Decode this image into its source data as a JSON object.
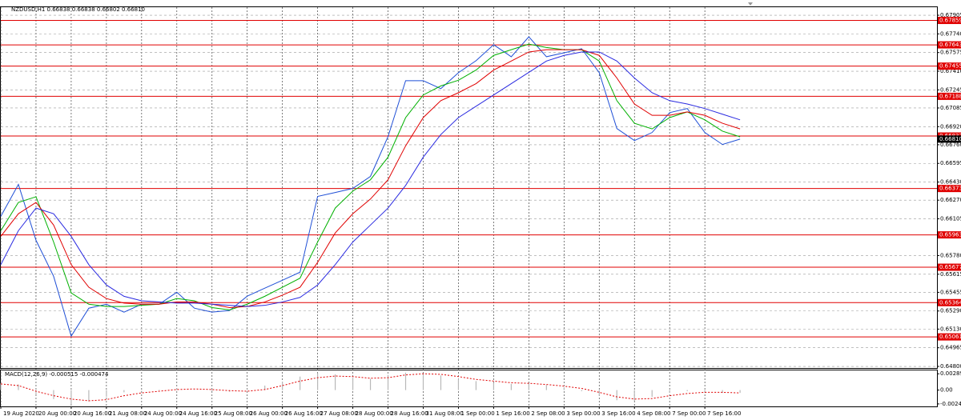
{
  "chart_data": [
    {
      "type": "line",
      "title": "NZDUSD,H1  0.66838 0.66838 0.66802 0.66810",
      "grid": true,
      "x": [
        0,
        8,
        16,
        24,
        32,
        40,
        48,
        56,
        64,
        72,
        80,
        88,
        96,
        104,
        112,
        120,
        128,
        136,
        144,
        152,
        160,
        168,
        176,
        184,
        192,
        200,
        208,
        216,
        224,
        232,
        240,
        248,
        256,
        264,
        272,
        280,
        288,
        296,
        304,
        312,
        320,
        328,
        336
      ],
      "xlim": [
        0,
        425.5
      ],
      "xticks": [
        {
          "value": 0,
          "label": "19 Aug 2020"
        },
        {
          "value": 16,
          "label": "20 Aug 00:00"
        },
        {
          "value": 32,
          "label": "20 Aug 16:00"
        },
        {
          "value": 48,
          "label": "21 Aug 08:00"
        },
        {
          "value": 64,
          "label": "24 Aug 00:00"
        },
        {
          "value": 80,
          "label": "24 Aug 16:00"
        },
        {
          "value": 96,
          "label": "25 Aug 08:00"
        },
        {
          "value": 112,
          "label": "26 Aug 00:00"
        },
        {
          "value": 128,
          "label": "26 Aug 16:00"
        },
        {
          "value": 144,
          "label": "27 Aug 08:00"
        },
        {
          "value": 160,
          "label": "28 Aug 00:00"
        },
        {
          "value": 176,
          "label": "28 Aug 16:00"
        },
        {
          "value": 192,
          "label": "31 Aug 08:00"
        },
        {
          "value": 208,
          "label": "1 Sep 00:00"
        },
        {
          "value": 224,
          "label": "1 Sep 16:00"
        },
        {
          "value": 240,
          "label": "2 Sep 08:00"
        },
        {
          "value": 256,
          "label": "3 Sep 00:00"
        },
        {
          "value": 272,
          "label": "3 Sep 16:00"
        },
        {
          "value": 288,
          "label": "4 Sep 08:00"
        },
        {
          "value": 304,
          "label": "7 Sep 00:00"
        },
        {
          "value": 320,
          "label": "7 Sep 16:00"
        }
      ],
      "ylim": [
        0.64786,
        0.67976
      ],
      "yticks": [
        0.67905,
        {
          "value": 0.6774,
          "label": "0.67740"
        },
        0.67575,
        {
          "value": 0.6741,
          "label": "0.67410"
        },
        0.67245,
        0.67085,
        {
          "value": 0.6692,
          "label": "0.66920"
        },
        {
          "value": 0.6676,
          "label": "0.66760"
        },
        0.66595,
        {
          "value": 0.6643,
          "label": "0.66430"
        },
        {
          "value": 0.6627,
          "label": "0.66270"
        },
        0.66105,
        {
          "value": 0.6578,
          "label": "0.65780"
        },
        0.65615,
        0.65455,
        {
          "value": 0.6529,
          "label": "0.65290"
        },
        {
          "value": 0.6513,
          "label": "0.65130"
        },
        0.64965,
        {
          "value": 0.648,
          "label": "0.64800"
        }
      ],
      "series": [
        {
          "color": "#1f4fd6",
          "values": [
            0.66127,
            0.66409,
            0.65915,
            0.65597,
            0.65068,
            0.65315,
            0.6535,
            0.6528,
            0.6535,
            0.6535,
            0.65456,
            0.65315,
            0.6528,
            0.65294,
            0.65421,
            0.65492,
            0.65562,
            0.65633,
            0.66303,
            0.66338,
            0.66374,
            0.6648,
            0.66832,
            0.67326,
            0.67326,
            0.67256,
            0.67397,
            0.67503,
            0.67644,
            0.67538,
            0.67714,
            0.67538,
            0.67573,
            0.67609,
            0.67397,
            0.66903,
            0.66797,
            0.66868,
            0.67044,
            0.6708,
            0.66868,
            0.66762,
            0.6681
          ]
        },
        {
          "color": "#00b000",
          "values": [
            0.66,
            0.6625,
            0.663,
            0.659,
            0.6545,
            0.6535,
            0.6533,
            0.6533,
            0.6534,
            0.6535,
            0.654,
            0.6538,
            0.6532,
            0.653,
            0.6535,
            0.6542,
            0.655,
            0.6558,
            0.659,
            0.662,
            0.6635,
            0.6645,
            0.6665,
            0.67,
            0.672,
            0.6728,
            0.6733,
            0.6742,
            0.6755,
            0.676,
            0.6765,
            0.6762,
            0.676,
            0.676,
            0.675,
            0.6715,
            0.6695,
            0.669,
            0.67,
            0.6705,
            0.6698,
            0.6688,
            0.6683
          ]
        },
        {
          "color": "#e00000",
          "values": [
            0.6595,
            0.6615,
            0.6625,
            0.6605,
            0.657,
            0.655,
            0.654,
            0.6536,
            0.6535,
            0.6535,
            0.6537,
            0.6537,
            0.6535,
            0.6532,
            0.6533,
            0.6537,
            0.6543,
            0.655,
            0.6572,
            0.6598,
            0.6615,
            0.6628,
            0.6645,
            0.6675,
            0.67,
            0.6715,
            0.6722,
            0.673,
            0.6742,
            0.675,
            0.6758,
            0.676,
            0.676,
            0.676,
            0.6755,
            0.6735,
            0.6712,
            0.6702,
            0.6702,
            0.6705,
            0.6702,
            0.6695,
            0.669
          ]
        },
        {
          "color": "#2a2ae0",
          "values": [
            0.657,
            0.66,
            0.662,
            0.6615,
            0.6595,
            0.657,
            0.6552,
            0.6542,
            0.6538,
            0.6537,
            0.6536,
            0.6536,
            0.6535,
            0.6534,
            0.6533,
            0.6534,
            0.6537,
            0.6541,
            0.6552,
            0.657,
            0.659,
            0.6605,
            0.662,
            0.664,
            0.6665,
            0.6685,
            0.67,
            0.671,
            0.672,
            0.673,
            0.674,
            0.675,
            0.6755,
            0.6758,
            0.6758,
            0.675,
            0.6735,
            0.6722,
            0.6715,
            0.6712,
            0.6708,
            0.6703,
            0.6698
          ]
        }
      ],
      "level_color": "#e00000",
      "levels": [
        0.67859,
        0.67643,
        0.67455,
        0.67188,
        0.66837,
        0.66373,
        0.65963,
        0.65677,
        0.65364,
        0.65061
      ],
      "current_price": {
        "value": 0.6681,
        "label": "0.66810"
      }
    },
    {
      "type": "macd",
      "title": "MACD(12,26,9) -0.000515 -0.000474",
      "x": [
        0,
        8,
        16,
        24,
        32,
        40,
        48,
        56,
        64,
        72,
        80,
        88,
        96,
        104,
        112,
        120,
        128,
        136,
        144,
        152,
        160,
        168,
        176,
        184,
        192,
        200,
        208,
        216,
        224,
        232,
        240,
        248,
        256,
        264,
        272,
        280,
        288,
        296,
        304,
        312,
        320,
        328,
        336
      ],
      "xlim": [
        0,
        425.5
      ],
      "ylim": [
        -0.0029,
        0.0035
      ],
      "yticks": [
        0.002898,
        {
          "value": 0,
          "label": "0.00"
        },
        -0.00246
      ],
      "series": [
        {
          "style": "bar",
          "color": "#b8b8b8",
          "values": [
            0.0012,
            0.001,
            -0.0008,
            -0.0016,
            -0.0025,
            -0.002,
            -0.0012,
            -0.0004,
            -0.0001,
            0.0001,
            0.0003,
            0,
            -0.0002,
            -0.0003,
            0.0002,
            0.0008,
            0.0015,
            0.0024,
            0.003,
            0.0028,
            0.0022,
            0.002,
            0.0027,
            0.0031,
            0.003,
            0.0026,
            0.002,
            0.0016,
            0.0013,
            0.0011,
            0.0012,
            0.0009,
            0.0005,
            -0.0002,
            -0.001,
            -0.0018,
            -0.0019,
            -0.0012,
            -0.0005,
            -0.0002,
            -0.0004,
            -0.0005,
            -0.0005
          ]
        },
        {
          "style": "dotted-line",
          "color": "#e00000",
          "values": [
            0.0011,
            0.0008,
            -0.0002,
            -0.001,
            -0.0016,
            -0.0019,
            -0.0017,
            -0.001,
            -0.0005,
            -0.0002,
            0.0001,
            0.0002,
            0.0001,
            -0.0001,
            -0.0002,
            0.0001,
            0.0008,
            0.0016,
            0.0022,
            0.0025,
            0.0024,
            0.0021,
            0.0022,
            0.0027,
            0.0029,
            0.0028,
            0.0024,
            0.0019,
            0.0016,
            0.0013,
            0.0012,
            0.001,
            0.0007,
            0.0003,
            -0.0004,
            -0.0012,
            -0.0016,
            -0.0015,
            -0.001,
            -0.0006,
            -0.0004,
            -0.0004,
            -0.0005
          ]
        }
      ]
    }
  ]
}
